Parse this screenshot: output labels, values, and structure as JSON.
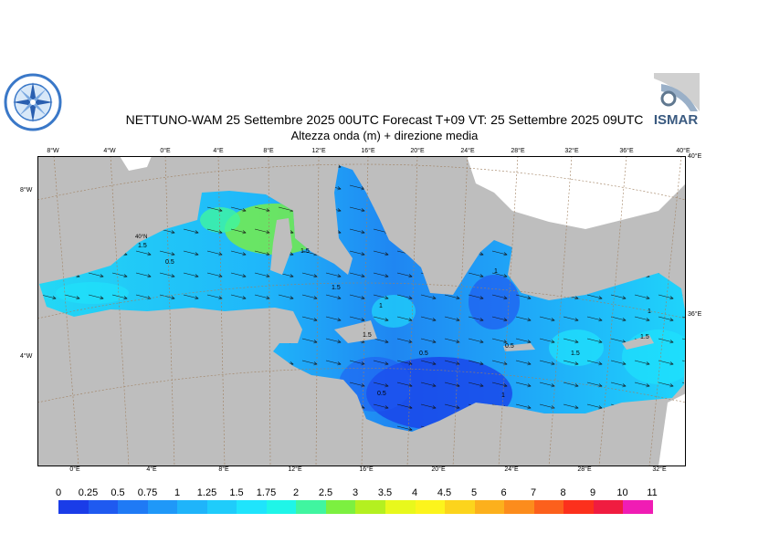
{
  "header": {
    "title": "NETTUNO-WAM  25 Settembre 2025 00UTC Forecast T+09 VT: 25 Settembre 2025 09UTC",
    "subtitle": "Altezza onda (m) + direzione media"
  },
  "logos": {
    "left_icon": "compass-rose-logo",
    "right_text": "ISMAR"
  },
  "map": {
    "top_longitude_labels": [
      "8°W",
      "4°W",
      "0°E",
      "4°E",
      "8°E",
      "12°E",
      "16°E",
      "20°E",
      "24°E",
      "28°E",
      "32°E",
      "36°E",
      "40°E"
    ],
    "bottom_longitude_labels": [
      "0°E",
      "4°E",
      "8°E",
      "12°E",
      "16°E",
      "20°E",
      "24°E",
      "28°E",
      "32°E"
    ],
    "left_latitude_labels": [
      "8°W",
      "4°W"
    ],
    "right_latitude_labels": [
      "40°E",
      "36°E"
    ],
    "inner_label": "40°N",
    "contour_labels": [
      "1.5",
      "0.5",
      "1.5",
      "1.5",
      "1",
      "1.5",
      "0.5",
      "0.5",
      "1",
      "1",
      "1.5",
      "0.5",
      "1",
      "1.5"
    ]
  },
  "colorbar": {
    "labels": [
      "0",
      "0.25",
      "0.5",
      "0.75",
      "1",
      "1.25",
      "1.5",
      "1.75",
      "2",
      "2.5",
      "3",
      "3.5",
      "4",
      "4.5",
      "5",
      "6",
      "7",
      "8",
      "9",
      "10",
      "11"
    ],
    "colors": [
      "#1a3ce8",
      "#1f5af0",
      "#1f7af5",
      "#1f98f8",
      "#1fb4fa",
      "#1fccfb",
      "#1fe4fc",
      "#1ff5e8",
      "#40f5a0",
      "#7cf040",
      "#b4f020",
      "#e8f81c",
      "#fcf41c",
      "#fcd41c",
      "#fcb01c",
      "#fc8c1c",
      "#fc601c",
      "#fc301c",
      "#f01c40",
      "#f01cb4"
    ]
  }
}
